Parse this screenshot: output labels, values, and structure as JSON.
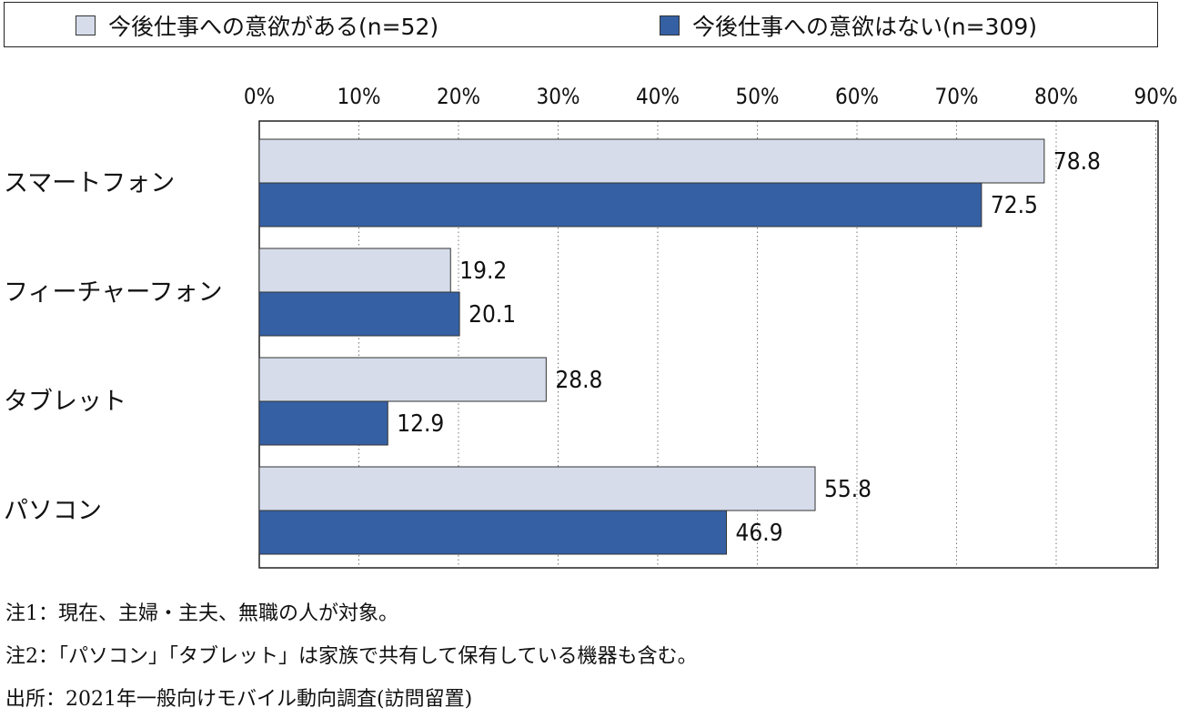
{
  "chart_data": {
    "type": "bar",
    "orientation": "horizontal",
    "categories": [
      "スマートフォン",
      "フィーチャーフォン",
      "タブレット",
      "パソコン"
    ],
    "series": [
      {
        "name": "今後仕事への意欲がある(n=52)",
        "color": "#d6dcea",
        "values": [
          78.8,
          19.2,
          28.8,
          55.8
        ]
      },
      {
        "name": "今後仕事への意欲はない(n=309)",
        "color": "#3560a4",
        "values": [
          72.5,
          20.1,
          12.9,
          46.9
        ]
      }
    ],
    "xlim": [
      0,
      90
    ],
    "ticks": [
      "0%",
      "10%",
      "20%",
      "30%",
      "40%",
      "50%",
      "60%",
      "70%",
      "80%",
      "90%"
    ],
    "grid": "vertical-dotted",
    "legend_position": "top"
  },
  "notes": [
    "注1：現在、主婦・主夫、無職の人が対象。",
    "注2：「パソコン」「タブレット」は家族で共有して保有している機器も含む。",
    "出所：2021年一般向けモバイル動向調査(訪問留置)"
  ]
}
